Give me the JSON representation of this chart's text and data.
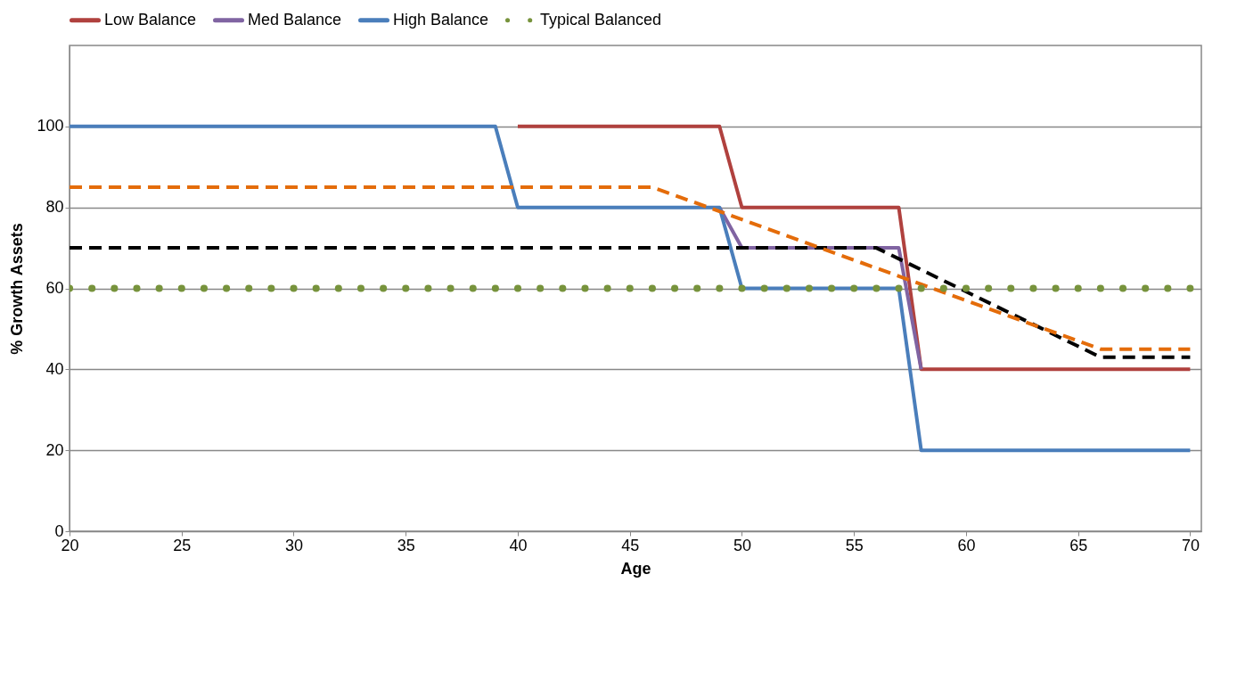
{
  "chart_data": {
    "type": "line",
    "xlabel": "Age",
    "ylabel": "% Growth Assets",
    "xlim": [
      20,
      70.5
    ],
    "xticks": [
      20,
      25,
      30,
      35,
      40,
      45,
      50,
      55,
      60,
      65,
      70
    ],
    "ylim": [
      0,
      120
    ],
    "yticks": [
      0,
      20,
      40,
      60,
      80,
      100
    ],
    "grid": "y",
    "legend": "top",
    "series": [
      {
        "name": "Low Balance",
        "color": "#b0413e",
        "line_style": "solid",
        "x": [
          40,
          49,
          50,
          57,
          58,
          70
        ],
        "values": [
          100,
          100,
          80,
          80,
          40,
          40
        ]
      },
      {
        "name": "Med Balance",
        "color": "#8064a2",
        "line_style": "solid",
        "x": [
          49,
          50,
          57,
          58
        ],
        "values": [
          80,
          70,
          70,
          40
        ]
      },
      {
        "name": "High Balance",
        "color": "#4a7ebb",
        "line_style": "solid",
        "x": [
          20,
          39,
          40,
          49,
          50,
          57,
          58,
          70
        ],
        "values": [
          100,
          100,
          80,
          80,
          60,
          60,
          20,
          20
        ]
      },
      {
        "color": "#000000",
        "line_style": "dashed",
        "x": [
          20,
          56,
          66,
          70
        ],
        "values": [
          70,
          70,
          43,
          43
        ]
      },
      {
        "color": "#e46c0a",
        "line_style": "dashed",
        "x": [
          20,
          46,
          66,
          70
        ],
        "values": [
          85,
          85,
          45,
          45
        ]
      },
      {
        "name": "Typical Balanced",
        "color": "#77933c",
        "line_style": "dotted",
        "x": [
          20,
          70
        ],
        "values": [
          60,
          60
        ]
      }
    ]
  }
}
